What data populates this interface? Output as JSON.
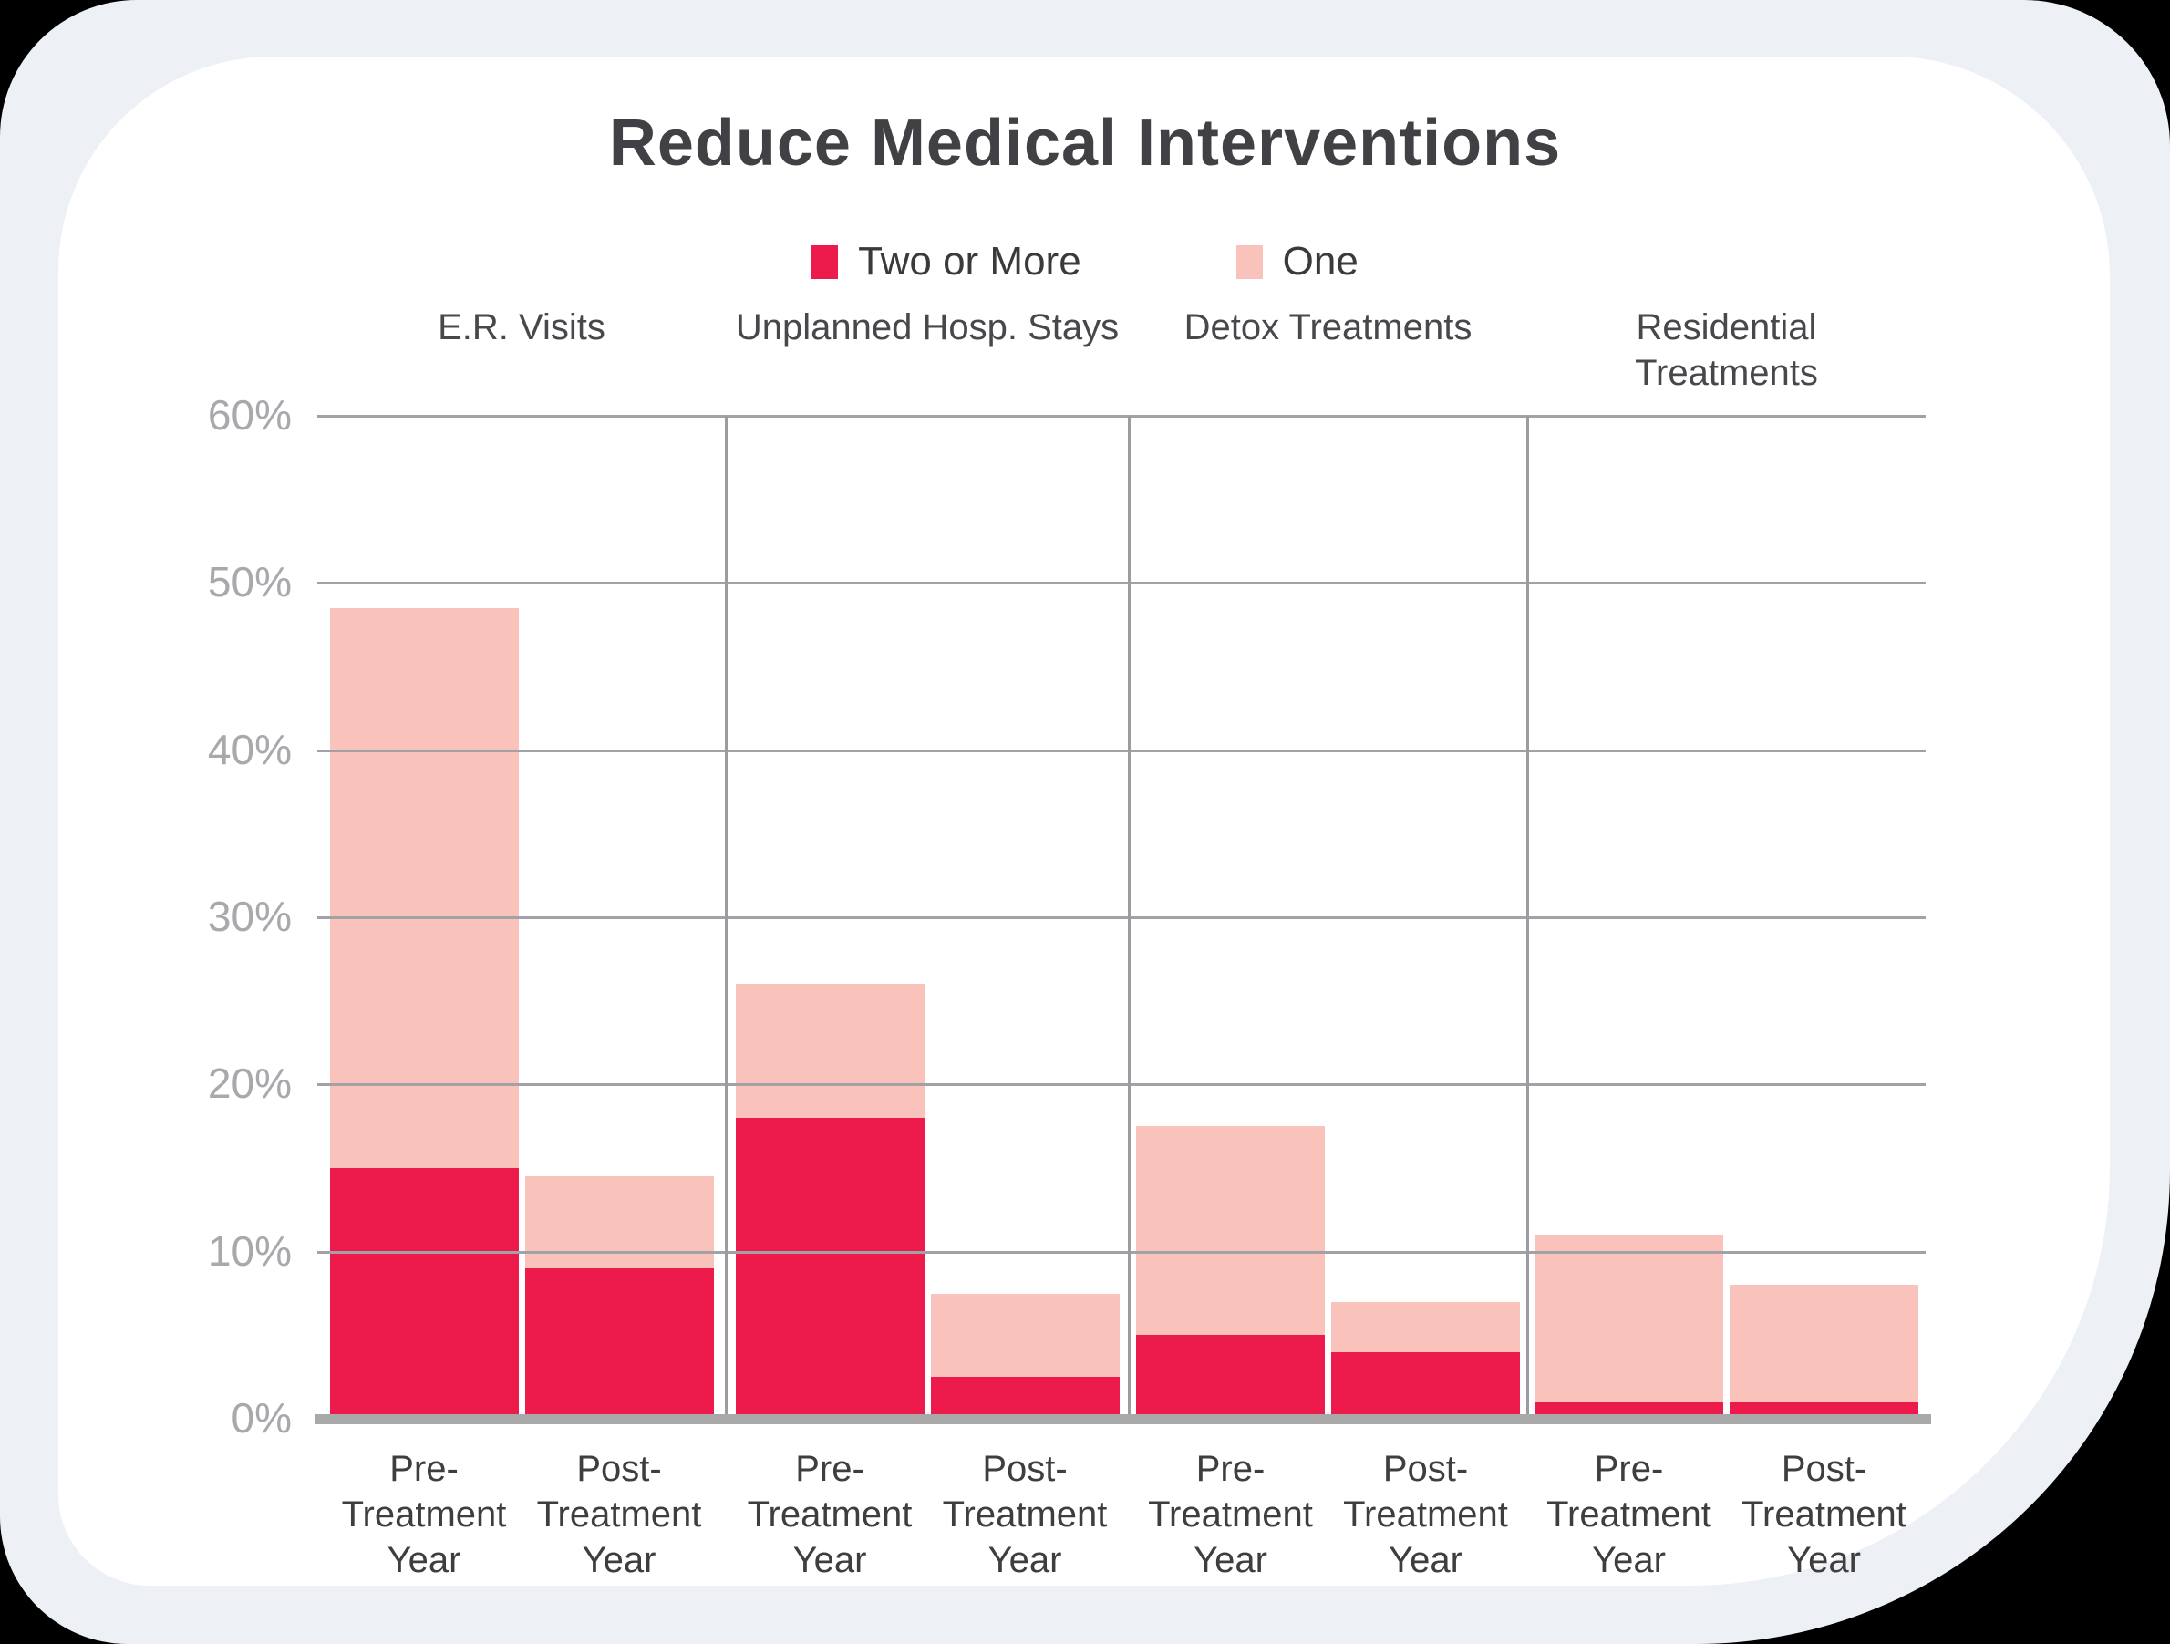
{
  "title": "Reduce Medical Interventions",
  "legend": [
    {
      "label": "Two or More",
      "color": "#ED1B4B"
    },
    {
      "label": "One",
      "color": "#F9C2BA"
    }
  ],
  "chart_data": {
    "type": "bar",
    "stacked": true,
    "title": "Reduce Medical Interventions",
    "categories": [
      "E.R. Visits",
      "Unplanned Hosp. Stays",
      "Detox Treatments",
      "Residential Treatments"
    ],
    "x_tick_lines": [
      [
        "Pre-",
        "Treatment",
        "Year"
      ],
      [
        "Post-",
        "Treatment",
        "Year"
      ]
    ],
    "series": [
      {
        "name": "Two or More",
        "color": "#ED1B4B",
        "values": [
          [
            15,
            9
          ],
          [
            18,
            2.5
          ],
          [
            5,
            4
          ],
          [
            1,
            1
          ]
        ]
      },
      {
        "name": "One",
        "color": "#F9C2BA",
        "values": [
          [
            33.5,
            5.5
          ],
          [
            8,
            5
          ],
          [
            12.5,
            3
          ],
          [
            10,
            7
          ]
        ]
      }
    ],
    "stack_totals": [
      [
        48.5,
        14.5
      ],
      [
        26,
        7.5
      ],
      [
        17.5,
        7
      ],
      [
        11,
        8
      ]
    ],
    "y_ticks": [
      "0%",
      "10%",
      "20%",
      "30%",
      "40%",
      "50%",
      "60%"
    ],
    "ylim": [
      0,
      60
    ],
    "unit": "%",
    "grid": true,
    "legend_position": "top"
  },
  "colors": {
    "page_bg": "#EDF1F6",
    "card_bg": "#FFFFFF",
    "gridline": "#A2A2A6",
    "separator": "#9C9CA0",
    "axis_line": "#A9A9A9",
    "y_tick_text": "#A9A9AD",
    "x_tick_text": "#3E3E3E",
    "header_text": "#48484C",
    "title_text": "#414145",
    "legend_text": "#3A3A3A"
  }
}
